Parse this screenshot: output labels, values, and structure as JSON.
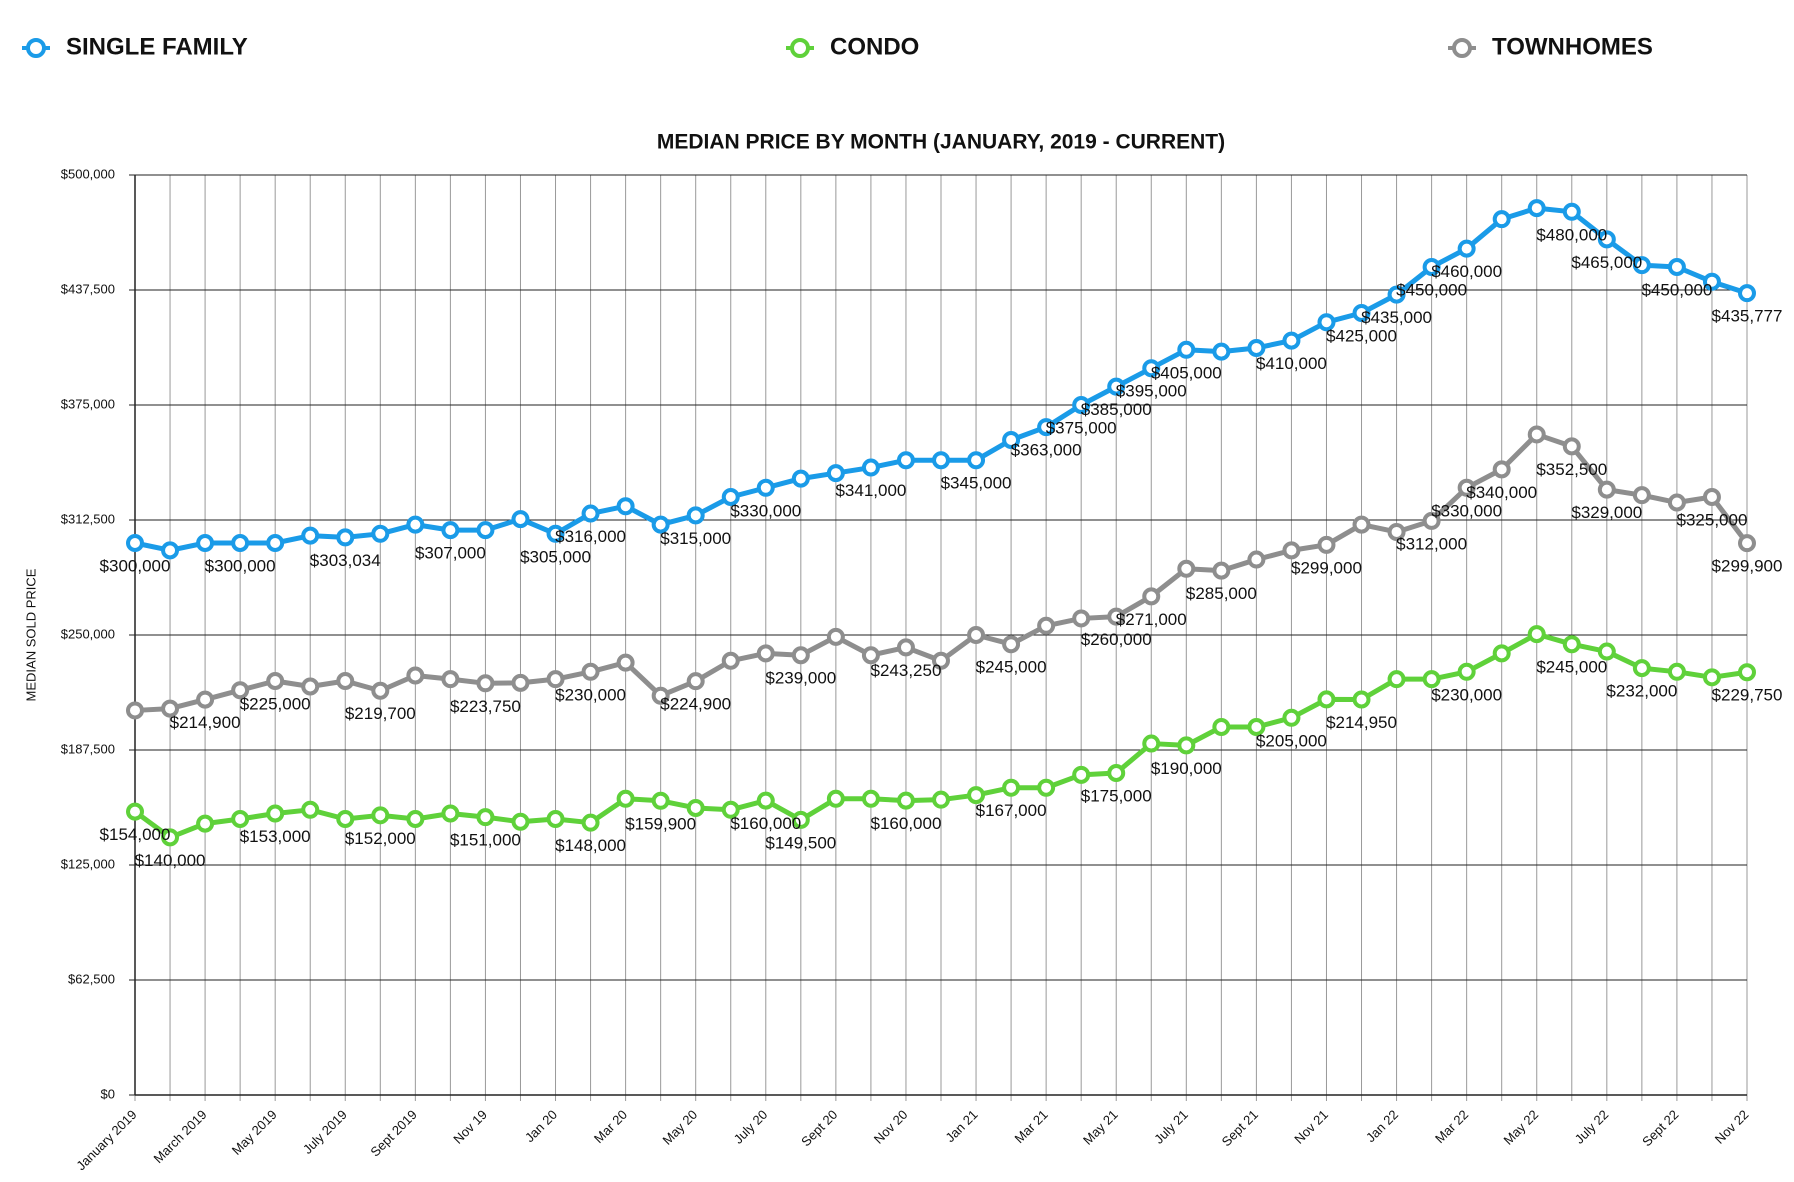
{
  "chart_data": {
    "type": "line",
    "title": "MEDIAN PRICE BY MONTH (JANUARY, 2019 - CURRENT)",
    "y_label": "MEDIAN SOLD PRICE",
    "categories": [
      "January 2019",
      null,
      "March 2019",
      null,
      "May 2019",
      null,
      "July 2019",
      null,
      "Sept 2019",
      null,
      "Nov 19",
      null,
      "Jan 20",
      null,
      "Mar 20",
      null,
      "May 20",
      null,
      "July 20",
      null,
      "Sept 20",
      null,
      "Nov 20",
      null,
      "Jan 21",
      null,
      "Mar 21",
      null,
      "May 21",
      null,
      "July 21",
      null,
      "Sept 21",
      null,
      "Nov 21",
      null,
      "Jan 22",
      null,
      "Mar 22",
      null,
      "May 22",
      null,
      "July 22",
      null,
      "Sept 22",
      null,
      "Nov 22"
    ],
    "ylim": [
      0,
      500000
    ],
    "yticks": [
      {
        "value": 0,
        "label": "$0"
      },
      {
        "value": 62500,
        "label": "$62,500"
      },
      {
        "value": 125000,
        "label": "$125,000"
      },
      {
        "value": 187500,
        "label": "$187,500"
      },
      {
        "value": 250000,
        "label": "$250,000"
      },
      {
        "value": 312500,
        "label": "$312,500"
      },
      {
        "value": 375000,
        "label": "$375,000"
      },
      {
        "value": 437500,
        "label": "$437,500"
      },
      {
        "value": 500000,
        "label": "$500,000"
      }
    ],
    "grid": true,
    "legend": "top",
    "series": [
      {
        "name": "SINGLE FAMILY",
        "color": "#1a9be8",
        "values": [
          300000,
          296000,
          300000,
          300000,
          300000,
          304000,
          303034,
          305000,
          310000,
          307000,
          307000,
          313000,
          305000,
          316000,
          320000,
          310000,
          315000,
          325000,
          330000,
          335000,
          338000,
          341000,
          345000,
          345000,
          345000,
          356000,
          363000,
          375000,
          385000,
          395000,
          405000,
          404000,
          406000,
          410000,
          420000,
          425000,
          435000,
          450000,
          460000,
          476000,
          482000,
          480000,
          465000,
          451000,
          450000,
          442000,
          435777
        ],
        "value_labels": [
          "$300,000",
          null,
          null,
          "$300,000",
          null,
          null,
          "$303,034",
          null,
          null,
          "$307,000",
          null,
          null,
          "$305,000",
          "$316,000",
          null,
          null,
          "$315,000",
          null,
          "$330,000",
          null,
          null,
          "$341,000",
          null,
          null,
          "$345,000",
          null,
          "$363,000",
          "$375,000",
          "$385,000",
          "$395,000",
          "$405,000",
          null,
          null,
          "$410,000",
          null,
          "$425,000",
          "$435,000",
          "$450,000",
          "$460,000",
          null,
          null,
          "$480,000",
          "$465,000",
          null,
          "$450,000",
          null,
          "$435,777"
        ]
      },
      {
        "name": "CONDO",
        "color": "#5fd13a",
        "values": [
          154000,
          140000,
          147500,
          150000,
          153000,
          155000,
          150000,
          152000,
          150000,
          153000,
          151000,
          148500,
          150000,
          148000,
          161000,
          159900,
          156000,
          155000,
          160000,
          149500,
          161000,
          161000,
          160000,
          160500,
          163000,
          167000,
          167000,
          174000,
          175000,
          191000,
          190000,
          200000,
          200000,
          205000,
          215000,
          214950,
          226000,
          226000,
          230000,
          240000,
          250500,
          245000,
          241000,
          232000,
          230000,
          227000,
          229750
        ],
        "value_labels": [
          "$154,000",
          "$140,000",
          null,
          null,
          "$153,000",
          null,
          null,
          "$152,000",
          null,
          null,
          "$151,000",
          null,
          null,
          "$148,000",
          null,
          "$159,900",
          null,
          null,
          "$160,000",
          "$149,500",
          null,
          null,
          "$160,000",
          null,
          null,
          "$167,000",
          null,
          null,
          "$175,000",
          null,
          "$190,000",
          null,
          null,
          "$205,000",
          null,
          "$214,950",
          null,
          null,
          "$230,000",
          null,
          null,
          "$245,000",
          null,
          "$232,000",
          null,
          null,
          "$229,750"
        ]
      },
      {
        "name": "TOWNHOMES",
        "color": "#8e8e8e",
        "values": [
          209000,
          210000,
          214900,
          220000,
          225000,
          222000,
          225000,
          219700,
          228000,
          226000,
          223750,
          224000,
          226000,
          230000,
          235000,
          217000,
          224900,
          236000,
          240000,
          239000,
          249000,
          239000,
          243250,
          236000,
          250000,
          245000,
          255000,
          259000,
          260000,
          271000,
          286000,
          285000,
          291000,
          296000,
          299000,
          310000,
          306000,
          312000,
          330000,
          340000,
          359000,
          352500,
          329000,
          326000,
          322000,
          325000,
          299900
        ],
        "value_labels": [
          null,
          null,
          "$214,900",
          null,
          "$225,000",
          null,
          null,
          "$219,700",
          null,
          null,
          "$223,750",
          null,
          null,
          "$230,000",
          null,
          null,
          "$224,900",
          null,
          null,
          "$239,000",
          null,
          null,
          "$243,250",
          null,
          null,
          "$245,000",
          null,
          null,
          "$260,000",
          "$271,000",
          null,
          "$285,000",
          null,
          null,
          "$299,000",
          null,
          null,
          "$312,000",
          "$330,000",
          "$340,000",
          null,
          "$352,500",
          "$329,000",
          null,
          null,
          "$325,000",
          "$299,900"
        ]
      }
    ]
  }
}
